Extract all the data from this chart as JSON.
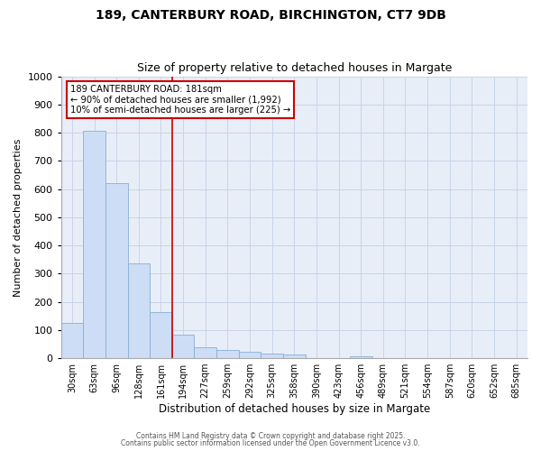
{
  "title_line1": "189, CANTERBURY ROAD, BIRCHINGTON, CT7 9DB",
  "title_line2": "Size of property relative to detached houses in Margate",
  "xlabel": "Distribution of detached houses by size in Margate",
  "ylabel": "Number of detached properties",
  "bar_labels": [
    "30sqm",
    "63sqm",
    "96sqm",
    "128sqm",
    "161sqm",
    "194sqm",
    "227sqm",
    "259sqm",
    "292sqm",
    "325sqm",
    "358sqm",
    "390sqm",
    "423sqm",
    "456sqm",
    "489sqm",
    "521sqm",
    "554sqm",
    "587sqm",
    "620sqm",
    "652sqm",
    "685sqm"
  ],
  "bar_values": [
    125,
    805,
    620,
    335,
    165,
    82,
    40,
    28,
    22,
    17,
    12,
    0,
    0,
    8,
    0,
    0,
    0,
    0,
    0,
    0,
    0
  ],
  "bar_color": "#ccddf5",
  "bar_edge_color": "#89afd4",
  "red_line_x": 4.5,
  "red_line_color": "#cc0000",
  "ylim": [
    0,
    1000
  ],
  "yticks": [
    0,
    100,
    200,
    300,
    400,
    500,
    600,
    700,
    800,
    900,
    1000
  ],
  "annotation_text": "189 CANTERBURY ROAD: 181sqm\n← 90% of detached houses are smaller (1,992)\n10% of semi-detached houses are larger (225) →",
  "annotation_box_color": "#ffffff",
  "annotation_box_edge": "#cc0000",
  "footer_line1": "Contains HM Land Registry data © Crown copyright and database right 2025.",
  "footer_line2": "Contains public sector information licensed under the Open Government Licence v3.0.",
  "plot_bg_color": "#e8eef8",
  "fig_bg_color": "#ffffff",
  "grid_color": "#c8d4e8"
}
